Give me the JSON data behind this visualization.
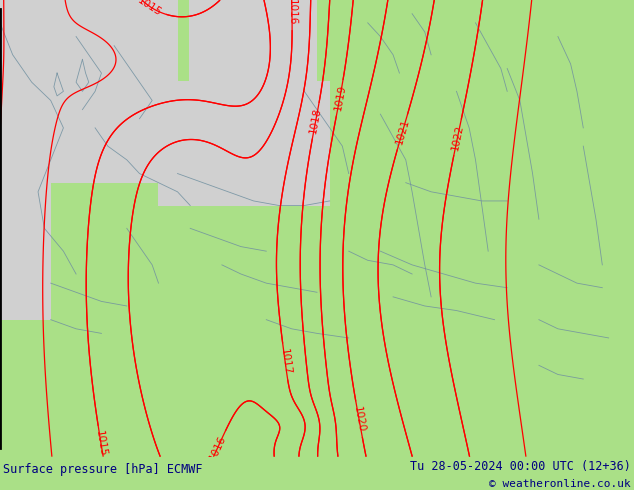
{
  "title_left": "Surface pressure [hPa] ECMWF",
  "title_right": "Tu 28-05-2024 00:00 UTC (12+36)",
  "copyright": "© weatheronline.co.uk",
  "land_color": "#aae087",
  "sea_color": "#d0d0d0",
  "border_color": "#7090a0",
  "contour_color": "#ff0000",
  "contour_label_color": "#ff0000",
  "bottom_bar_color": "#ffffff",
  "bottom_text_color": "#000080",
  "figsize": [
    6.34,
    4.9
  ],
  "dpi": 100,
  "left_black_line_color": "#000000",
  "label_fontsize": 7.5
}
